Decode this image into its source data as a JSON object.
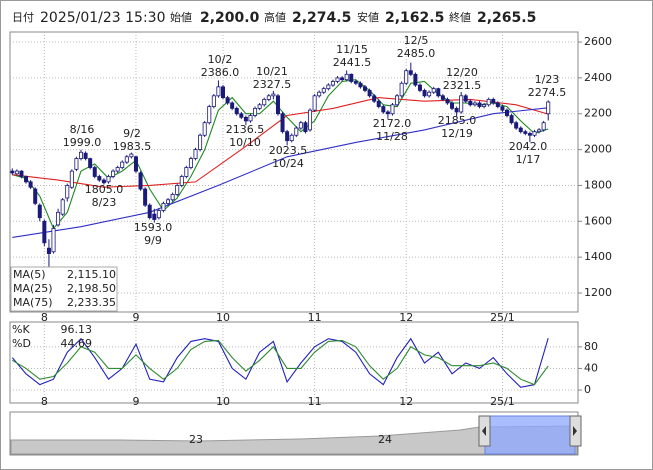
{
  "header": {
    "date_label": "日付",
    "date": "2025/01/23 15:30",
    "fields": [
      {
        "label": "始値",
        "value": {
          "value": 2200,
          "label": "2,200.0"
        },
        "color": "#111111"
      },
      {
        "label": "高値",
        "value": {
          "value": 2274.5,
          "label": "2,274.5"
        },
        "color": "#e01010"
      },
      {
        "label": "安値",
        "value": {
          "value": 2162.5,
          "label": "2,162.5"
        },
        "color": "#10a010"
      },
      {
        "label": "終値",
        "value": {
          "value": 2265.5,
          "label": "2,265.5"
        },
        "color": "#111111"
      }
    ]
  },
  "chart_data": [
    {
      "type": "candlestick",
      "up_color": "#ffffff",
      "down_color": "#1a1a7a",
      "edge_color": "#1a1a7a",
      "xlim": [
        -0.5,
        123.5
      ],
      "xticks": [
        {
          "value": 7,
          "label": "8"
        },
        {
          "value": 27,
          "label": "9"
        },
        {
          "value": 46,
          "label": "10"
        },
        {
          "value": 66,
          "label": "11"
        },
        {
          "value": 86,
          "label": "12"
        },
        {
          "value": 107,
          "label": "25/1"
        }
      ],
      "ylim": [
        1094,
        2656
      ],
      "yticks": [
        1200,
        1400,
        1600,
        1800,
        2000,
        2200,
        2400,
        2600
      ],
      "grid": true,
      "ohlc": [
        [
          1880,
          1895,
          1860,
          1870
        ],
        [
          1865,
          1890,
          1855,
          1880
        ],
        [
          1880,
          1885,
          1840,
          1850
        ],
        [
          1850,
          1855,
          1810,
          1820
        ],
        [
          1820,
          1830,
          1780,
          1790
        ],
        [
          1780,
          1790,
          1690,
          1700
        ],
        [
          1690,
          1700,
          1600,
          1620
        ],
        [
          1600,
          1610,
          1460,
          1480
        ],
        [
          1450,
          1500,
          1340,
          1420
        ],
        [
          1430,
          1580,
          1420,
          1560
        ],
        [
          1580,
          1670,
          1570,
          1650
        ],
        [
          1640,
          1730,
          1630,
          1720
        ],
        [
          1730,
          1810,
          1710,
          1800
        ],
        [
          1790,
          1890,
          1780,
          1880
        ],
        [
          1890,
          1960,
          1880,
          1950
        ],
        [
          1950,
          1999,
          1940,
          1985
        ],
        [
          1980,
          1990,
          1940,
          1950
        ],
        [
          1950,
          1955,
          1890,
          1900
        ],
        [
          1900,
          1910,
          1840,
          1850
        ],
        [
          1850,
          1860,
          1820,
          1830
        ],
        [
          1830,
          1840,
          1805,
          1815
        ],
        [
          1820,
          1860,
          1810,
          1850
        ],
        [
          1850,
          1890,
          1840,
          1880
        ],
        [
          1880,
          1910,
          1870,
          1900
        ],
        [
          1900,
          1940,
          1890,
          1930
        ],
        [
          1930,
          1970,
          1920,
          1960
        ],
        [
          1960,
          1983.5,
          1950,
          1975
        ],
        [
          1960,
          1965,
          1870,
          1880
        ],
        [
          1870,
          1880,
          1770,
          1780
        ],
        [
          1780,
          1790,
          1680,
          1690
        ],
        [
          1690,
          1700,
          1610,
          1620
        ],
        [
          1640,
          1670,
          1593,
          1610
        ],
        [
          1620,
          1670,
          1610,
          1660
        ],
        [
          1660,
          1710,
          1650,
          1700
        ],
        [
          1700,
          1730,
          1690,
          1720
        ],
        [
          1720,
          1760,
          1710,
          1750
        ],
        [
          1750,
          1810,
          1740,
          1800
        ],
        [
          1800,
          1860,
          1790,
          1850
        ],
        [
          1850,
          1910,
          1840,
          1900
        ],
        [
          1900,
          1960,
          1890,
          1950
        ],
        [
          1950,
          2010,
          1940,
          2000
        ],
        [
          2000,
          2090,
          1990,
          2080
        ],
        [
          2080,
          2160,
          2070,
          2150
        ],
        [
          2150,
          2250,
          2140,
          2240
        ],
        [
          2240,
          2310,
          2230,
          2300
        ],
        [
          2300,
          2386,
          2290,
          2350
        ],
        [
          2350,
          2360,
          2280,
          2290
        ],
        [
          2290,
          2300,
          2250,
          2260
        ],
        [
          2260,
          2270,
          2220,
          2230
        ],
        [
          2230,
          2240,
          2190,
          2200
        ],
        [
          2200,
          2210,
          2170,
          2180
        ],
        [
          2180,
          2190,
          2136.5,
          2160
        ],
        [
          2160,
          2200,
          2150,
          2190
        ],
        [
          2190,
          2240,
          2180,
          2230
        ],
        [
          2230,
          2260,
          2220,
          2250
        ],
        [
          2250,
          2290,
          2240,
          2280
        ],
        [
          2280,
          2310,
          2270,
          2300
        ],
        [
          2300,
          2327.5,
          2280,
          2310
        ],
        [
          2300,
          2310,
          2190,
          2200
        ],
        [
          2200,
          2210,
          2090,
          2100
        ],
        [
          2100,
          2110,
          2023.5,
          2050
        ],
        [
          2050,
          2090,
          2040,
          2080
        ],
        [
          2080,
          2130,
          2070,
          2120
        ],
        [
          2120,
          2160,
          2110,
          2150
        ],
        [
          2150,
          2160,
          2090,
          2100
        ],
        [
          2110,
          2230,
          2100,
          2220
        ],
        [
          2220,
          2310,
          2210,
          2300
        ],
        [
          2300,
          2330,
          2290,
          2320
        ],
        [
          2320,
          2350,
          2310,
          2340
        ],
        [
          2340,
          2370,
          2330,
          2360
        ],
        [
          2360,
          2390,
          2350,
          2380
        ],
        [
          2380,
          2410,
          2370,
          2400
        ],
        [
          2400,
          2410,
          2380,
          2390
        ],
        [
          2390,
          2441.5,
          2380,
          2420
        ],
        [
          2420,
          2425,
          2370,
          2380
        ],
        [
          2380,
          2390,
          2360,
          2370
        ],
        [
          2370,
          2380,
          2340,
          2350
        ],
        [
          2350,
          2360,
          2320,
          2330
        ],
        [
          2330,
          2340,
          2290,
          2300
        ],
        [
          2300,
          2310,
          2260,
          2270
        ],
        [
          2270,
          2280,
          2230,
          2240
        ],
        [
          2240,
          2250,
          2200,
          2210
        ],
        [
          2210,
          2220,
          2172,
          2200
        ],
        [
          2200,
          2260,
          2190,
          2250
        ],
        [
          2250,
          2310,
          2240,
          2300
        ],
        [
          2300,
          2380,
          2290,
          2370
        ],
        [
          2370,
          2450,
          2360,
          2440
        ],
        [
          2440,
          2485,
          2410,
          2420
        ],
        [
          2420,
          2430,
          2350,
          2360
        ],
        [
          2360,
          2370,
          2320,
          2330
        ],
        [
          2330,
          2340,
          2290,
          2300
        ],
        [
          2300,
          2330,
          2290,
          2320
        ],
        [
          2320,
          2350,
          2310,
          2340
        ],
        [
          2340,
          2345,
          2290,
          2300
        ],
        [
          2300,
          2310,
          2270,
          2280
        ],
        [
          2280,
          2290,
          2250,
          2260
        ],
        [
          2260,
          2270,
          2220,
          2230
        ],
        [
          2230,
          2240,
          2185,
          2210
        ],
        [
          2210,
          2321.5,
          2200,
          2300
        ],
        [
          2300,
          2310,
          2260,
          2270
        ],
        [
          2270,
          2280,
          2240,
          2250
        ],
        [
          2250,
          2270,
          2240,
          2260
        ],
        [
          2260,
          2270,
          2230,
          2240
        ],
        [
          2240,
          2260,
          2230,
          2250
        ],
        [
          2250,
          2290,
          2240,
          2280
        ],
        [
          2280,
          2290,
          2250,
          2260
        ],
        [
          2260,
          2270,
          2230,
          2240
        ],
        [
          2240,
          2250,
          2210,
          2220
        ],
        [
          2220,
          2230,
          2180,
          2190
        ],
        [
          2190,
          2200,
          2140,
          2150
        ],
        [
          2150,
          2160,
          2110,
          2120
        ],
        [
          2120,
          2130,
          2090,
          2100
        ],
        [
          2100,
          2110,
          2080,
          2090
        ],
        [
          2090,
          2100,
          2042,
          2080
        ],
        [
          2080,
          2110,
          2070,
          2100
        ],
        [
          2100,
          2120,
          2090,
          2110
        ],
        [
          2110,
          2160,
          2100,
          2150
        ],
        [
          2200,
          2274.5,
          2162.5,
          2265.5
        ]
      ],
      "series": [
        {
          "name": "MA(5)",
          "color": "#1f8a1f",
          "last": {
            "value": 2115.1,
            "label": "2,115.10"
          },
          "x": [
            0,
            3,
            6,
            9,
            12,
            15,
            18,
            21,
            24,
            27,
            30,
            33,
            36,
            39,
            42,
            45,
            48,
            51,
            54,
            57,
            60,
            63,
            66,
            69,
            72,
            75,
            78,
            81,
            84,
            87,
            90,
            93,
            96,
            99,
            102,
            105,
            108,
            111,
            114,
            117
          ],
          "values": [
            1860,
            1840,
            1740,
            1560,
            1650,
            1880,
            1920,
            1840,
            1880,
            1940,
            1780,
            1660,
            1730,
            1850,
            2000,
            2220,
            2290,
            2200,
            2200,
            2270,
            2180,
            2100,
            2160,
            2300,
            2380,
            2390,
            2330,
            2250,
            2240,
            2370,
            2380,
            2310,
            2260,
            2260,
            2250,
            2260,
            2240,
            2160,
            2090,
            2115
          ]
        },
        {
          "name": "MA(25)",
          "color": "#e02020",
          "last": {
            "value": 2198.5,
            "label": "2,198.50"
          },
          "x": [
            0,
            10,
            20,
            30,
            40,
            50,
            60,
            70,
            80,
            90,
            100,
            110,
            117
          ],
          "values": [
            1860,
            1830,
            1790,
            1800,
            1820,
            2000,
            2190,
            2230,
            2290,
            2270,
            2280,
            2250,
            2198
          ]
        },
        {
          "name": "MA(75)",
          "color": "#3030c8",
          "last": {
            "value": 2233.35,
            "label": "2,233.35"
          },
          "x": [
            0,
            15,
            30,
            45,
            60,
            75,
            90,
            105,
            117
          ],
          "values": [
            1510,
            1570,
            1650,
            1800,
            1960,
            2040,
            2110,
            2200,
            2233
          ]
        }
      ],
      "annotations": [
        {
          "date": "10/2",
          "price": {
            "value": 2386,
            "label": "2386.0"
          }
        },
        {
          "date": "8/16",
          "price": {
            "value": 1999,
            "label": "1999.0"
          }
        },
        {
          "date": "9/2",
          "price": 1983.5
        },
        {
          "date": "8/23",
          "price": {
            "value": 1805,
            "label": "1805.0"
          }
        },
        {
          "date": "9/9",
          "price": {
            "value": 1593,
            "label": "1593.0"
          }
        },
        {
          "date": "10/21",
          "price": 2327.5
        },
        {
          "date": "10/10",
          "price": 2136.5
        },
        {
          "date": "10/24",
          "price": 2023.5
        },
        {
          "date": "11/15",
          "price": 2441.5
        },
        {
          "date": "12/5",
          "price": {
            "value": 2485,
            "label": "2485.0"
          }
        },
        {
          "date": "12/20",
          "price": 2321.5
        },
        {
          "date": "11/28",
          "price": {
            "value": 2172,
            "label": "2172.0"
          }
        },
        {
          "date": "12/19",
          "price": {
            "value": 2185,
            "label": "2185.0"
          }
        },
        {
          "date": "1/23",
          "price": 2274.5
        },
        {
          "date": "1/17",
          "price": {
            "value": 2042,
            "label": "2042.0"
          }
        }
      ]
    },
    {
      "type": "line",
      "xlim": [
        -0.5,
        123.5
      ],
      "xticks": [
        {
          "value": 7,
          "label": "8"
        },
        {
          "value": 27,
          "label": "9"
        },
        {
          "value": 46,
          "label": "10"
        },
        {
          "value": 66,
          "label": "11"
        },
        {
          "value": 86,
          "label": "12"
        },
        {
          "value": 107,
          "label": "25/1"
        }
      ],
      "ylim": [
        -24,
        126
      ],
      "yticks": [
        0,
        40,
        80
      ],
      "grid": true,
      "series": [
        {
          "name": "%K",
          "color": "#2020c0",
          "last": 96.13,
          "x": [
            0,
            3,
            6,
            9,
            12,
            15,
            18,
            21,
            24,
            27,
            30,
            33,
            36,
            39,
            42,
            45,
            48,
            51,
            54,
            57,
            60,
            63,
            66,
            69,
            72,
            75,
            78,
            81,
            84,
            87,
            90,
            93,
            96,
            99,
            102,
            105,
            108,
            111,
            114,
            117
          ],
          "values": [
            60,
            30,
            10,
            20,
            70,
            95,
            60,
            20,
            40,
            85,
            20,
            15,
            60,
            90,
            95,
            90,
            40,
            20,
            70,
            90,
            15,
            50,
            80,
            95,
            90,
            70,
            30,
            10,
            60,
            95,
            50,
            70,
            30,
            50,
            40,
            60,
            30,
            5,
            10,
            96.13
          ]
        },
        {
          "name": "%D",
          "color": "#2e8b2e",
          "last": 44.69,
          "x": [
            0,
            3,
            6,
            9,
            12,
            15,
            18,
            21,
            24,
            27,
            30,
            33,
            36,
            39,
            42,
            45,
            48,
            51,
            54,
            57,
            60,
            63,
            66,
            69,
            72,
            75,
            78,
            81,
            84,
            87,
            90,
            93,
            96,
            99,
            102,
            105,
            108,
            111,
            114,
            117
          ],
          "values": [
            55,
            40,
            20,
            25,
            50,
            80,
            70,
            40,
            40,
            65,
            40,
            20,
            40,
            75,
            90,
            92,
            60,
            35,
            55,
            80,
            40,
            40,
            70,
            90,
            92,
            80,
            45,
            20,
            40,
            80,
            65,
            60,
            45,
            45,
            45,
            50,
            40,
            20,
            10,
            44.69
          ]
        }
      ]
    }
  ],
  "overview": {
    "labels": [
      "23",
      "24"
    ]
  }
}
